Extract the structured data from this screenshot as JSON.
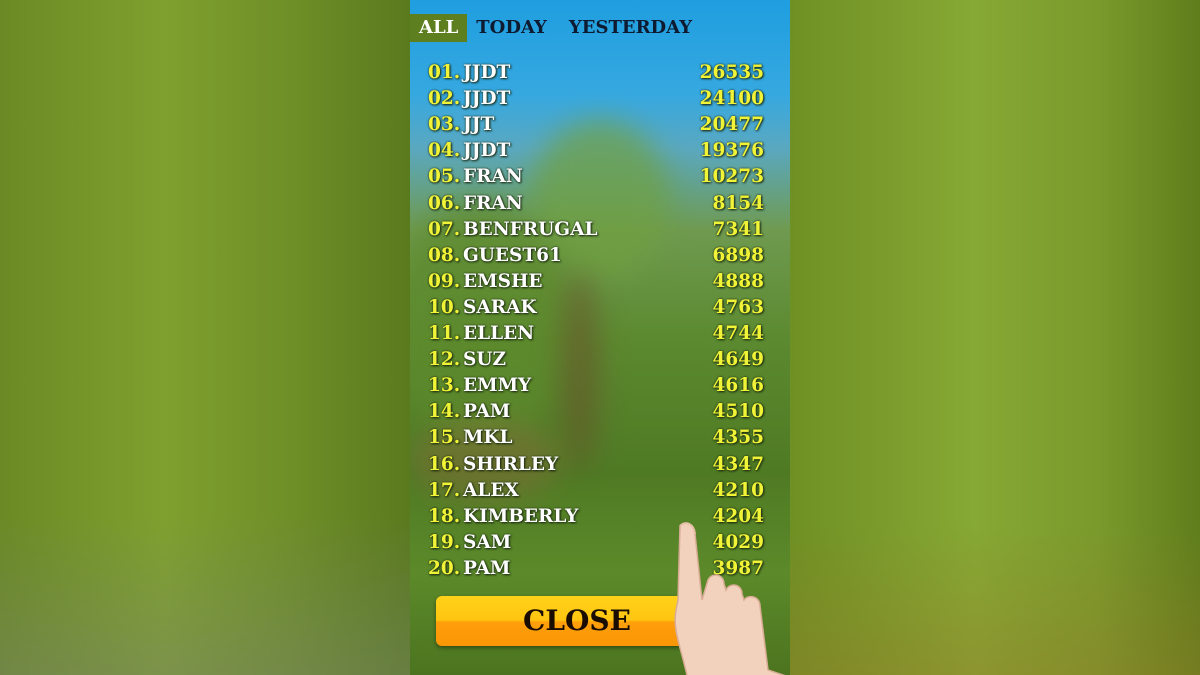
{
  "tabs": [
    {
      "label": "ALL",
      "active": true
    },
    {
      "label": "TODAY",
      "active": false
    },
    {
      "label": "YESTERDAY",
      "active": false
    }
  ],
  "leaderboard": [
    {
      "rank": "01.",
      "name": "JJDT",
      "score": "26535"
    },
    {
      "rank": "02.",
      "name": "JJDT",
      "score": "24100"
    },
    {
      "rank": "03.",
      "name": "JJT",
      "score": "20477"
    },
    {
      "rank": "04.",
      "name": "JJDT",
      "score": "19376"
    },
    {
      "rank": "05.",
      "name": "FRAN",
      "score": "10273"
    },
    {
      "rank": "06.",
      "name": "FRAN",
      "score": "8154"
    },
    {
      "rank": "07.",
      "name": "BENFRUGAL",
      "score": "7341"
    },
    {
      "rank": "08.",
      "name": "GUEST61",
      "score": "6898"
    },
    {
      "rank": "09.",
      "name": "EMSHE",
      "score": "4888"
    },
    {
      "rank": "10.",
      "name": "SARAK",
      "score": "4763"
    },
    {
      "rank": "11.",
      "name": "ELLEN",
      "score": "4744"
    },
    {
      "rank": "12.",
      "name": "SUZ",
      "score": "4649"
    },
    {
      "rank": "13.",
      "name": "EMMY",
      "score": "4616"
    },
    {
      "rank": "14.",
      "name": "PAM",
      "score": "4510"
    },
    {
      "rank": "15.",
      "name": "MKL",
      "score": "4355"
    },
    {
      "rank": "16.",
      "name": "SHIRLEY",
      "score": "4347"
    },
    {
      "rank": "17.",
      "name": "ALEX",
      "score": "4210"
    },
    {
      "rank": "18.",
      "name": "KIMBERLY",
      "score": "4204"
    },
    {
      "rank": "19.",
      "name": "SAM",
      "score": "4029"
    },
    {
      "rank": "20.",
      "name": "PAM",
      "score": "3987"
    }
  ],
  "close_label": "CLOSE",
  "colors": {
    "active_tab": "#5d7f1f",
    "rank": "#f1f436",
    "score": "#f1f436",
    "name": "#ffffff",
    "button": "#ffc510"
  }
}
